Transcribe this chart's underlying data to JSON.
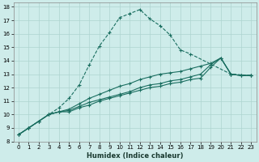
{
  "xlabel": "Humidex (Indice chaleur)",
  "bg_color": "#ceecea",
  "line_color": "#1a6e60",
  "grid_color": "#aed4d0",
  "xlim": [
    -0.5,
    23.5
  ],
  "ylim": [
    8.0,
    18.3
  ],
  "xticks": [
    0,
    1,
    2,
    3,
    4,
    5,
    6,
    7,
    8,
    9,
    10,
    11,
    12,
    13,
    14,
    15,
    16,
    17,
    18,
    19,
    20,
    21,
    22,
    23
  ],
  "yticks": [
    8,
    9,
    10,
    11,
    12,
    13,
    14,
    15,
    16,
    17,
    18
  ],
  "peak_x": [
    0,
    1,
    2,
    3,
    4,
    5,
    6,
    7,
    8,
    9,
    10,
    11,
    12,
    13,
    14,
    15,
    16,
    17,
    18,
    19,
    20,
    21,
    22,
    23
  ],
  "peak_y": [
    8.5,
    9.0,
    9.5,
    10.0,
    10.5,
    11.2,
    12.2,
    13.7,
    15.1,
    16.1,
    17.2,
    17.5,
    17.8,
    17.1,
    16.6,
    15.9,
    14.8,
    14.5,
    null,
    null,
    null,
    13.0,
    null,
    12.9
  ],
  "line_a_x": [
    0,
    1,
    2,
    3,
    4,
    5,
    6,
    7,
    8,
    9,
    10,
    11,
    12,
    13,
    14,
    15,
    16,
    17,
    18,
    19,
    20,
    21,
    22,
    23
  ],
  "line_a_y": [
    8.5,
    9.0,
    9.5,
    10.0,
    10.2,
    10.2,
    10.5,
    10.7,
    11.0,
    11.2,
    11.4,
    11.6,
    11.8,
    12.0,
    12.1,
    12.3,
    12.4,
    12.6,
    12.7,
    13.5,
    14.2,
    13.0,
    12.9,
    12.9
  ],
  "line_b_x": [
    0,
    1,
    2,
    3,
    4,
    5,
    6,
    7,
    8,
    9,
    10,
    11,
    12,
    13,
    14,
    15,
    16,
    17,
    18,
    19,
    20,
    21,
    22,
    23
  ],
  "line_b_y": [
    8.5,
    9.0,
    9.5,
    10.0,
    10.2,
    10.3,
    10.6,
    10.9,
    11.1,
    11.3,
    11.5,
    11.7,
    12.0,
    12.2,
    12.3,
    12.5,
    12.6,
    12.8,
    13.0,
    13.7,
    14.2,
    13.0,
    12.9,
    12.9
  ],
  "line_c_x": [
    0,
    1,
    2,
    3,
    4,
    5,
    6,
    7,
    8,
    9,
    10,
    11,
    12,
    13,
    14,
    15,
    16,
    17,
    18,
    19,
    20,
    21,
    22,
    23
  ],
  "line_c_y": [
    8.5,
    9.0,
    9.5,
    10.0,
    10.2,
    10.4,
    10.8,
    11.2,
    11.5,
    11.8,
    12.1,
    12.3,
    12.6,
    12.8,
    13.0,
    13.1,
    13.2,
    13.4,
    13.6,
    13.8,
    14.2,
    13.0,
    12.9,
    12.9
  ]
}
